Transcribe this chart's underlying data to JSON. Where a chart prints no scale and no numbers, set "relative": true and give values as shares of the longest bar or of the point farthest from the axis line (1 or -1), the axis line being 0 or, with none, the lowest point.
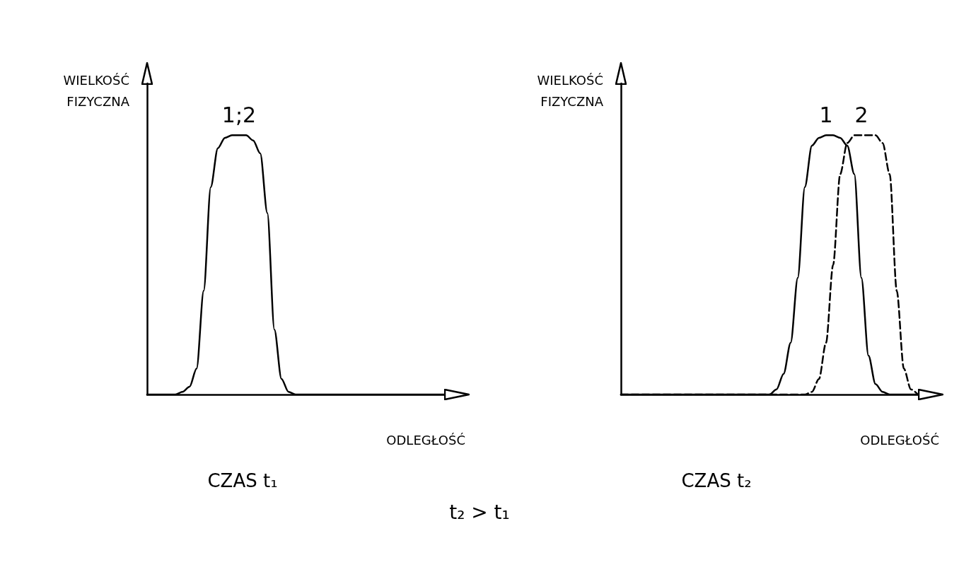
{
  "chart_data": [
    {
      "type": "line",
      "title": "CZAS t₁",
      "xlabel": "ODLEGŁOŚĆ",
      "ylabel": "WIELKOŚĆ FIZYCZNA",
      "relative": true,
      "grid": false,
      "legend": false,
      "marker": "none",
      "annotations": [
        "t₂ > t₁"
      ],
      "categories": [
        null,
        null,
        null,
        null,
        null,
        null,
        null,
        null,
        null,
        null,
        null,
        null,
        null,
        null,
        null,
        null,
        null,
        null,
        null,
        null,
        null,
        null,
        null,
        null,
        null,
        null,
        null,
        null,
        null,
        null,
        null,
        null,
        null,
        null,
        null,
        null,
        null,
        null,
        null,
        null,
        null,
        null,
        null
      ],
      "series": [
        {
          "name": "1;2",
          "color": "#000000",
          "line_style": "solid",
          "values": [
            0,
            0,
            0,
            0,
            0,
            0.01,
            0.03,
            0.1,
            0.4,
            0.8,
            0.95,
            0.99,
            1,
            1,
            1,
            0.98,
            0.93,
            0.7,
            0.25,
            0.06,
            0.01,
            0,
            0,
            0,
            0,
            0,
            0,
            0,
            0,
            0,
            0,
            0,
            0,
            0,
            0,
            0,
            0,
            0,
            0,
            0,
            0,
            0,
            0
          ]
        }
      ]
    },
    {
      "type": "line",
      "title": "CZAS t₂",
      "xlabel": "ODLEGŁOŚĆ",
      "ylabel": "WIELKOŚĆ FIZYCZNA",
      "relative": true,
      "grid": false,
      "legend": false,
      "marker": "none",
      "categories": [
        null,
        null,
        null,
        null,
        null,
        null,
        null,
        null,
        null,
        null,
        null,
        null,
        null,
        null,
        null,
        null,
        null,
        null,
        null,
        null,
        null,
        null,
        null,
        null,
        null,
        null,
        null,
        null,
        null,
        null,
        null,
        null,
        null,
        null,
        null,
        null,
        null,
        null,
        null,
        null,
        null,
        null,
        null
      ],
      "series": [
        {
          "name": "1",
          "color": "#000000",
          "line_style": "solid",
          "values": [
            0,
            0,
            0,
            0,
            0,
            0,
            0,
            0,
            0,
            0,
            0,
            0,
            0,
            0,
            0,
            0,
            0,
            0,
            0,
            0,
            0,
            0,
            0.02,
            0.08,
            0.2,
            0.45,
            0.8,
            0.96,
            0.99,
            1,
            1,
            0.99,
            0.96,
            0.85,
            0.45,
            0.15,
            0.04,
            0.01,
            0,
            0,
            0,
            0,
            0
          ]
        },
        {
          "name": "2",
          "color": "#000000",
          "line_style": "dashed",
          "values": [
            0,
            0,
            0,
            0,
            0,
            0,
            0,
            0,
            0,
            0,
            0,
            0,
            0,
            0,
            0,
            0,
            0,
            0,
            0,
            0,
            0,
            0,
            0,
            0,
            0,
            0,
            0,
            0.01,
            0.06,
            0.2,
            0.5,
            0.85,
            0.97,
            1,
            1,
            1,
            1,
            0.97,
            0.85,
            0.4,
            0.1,
            0.02,
            0
          ]
        }
      ]
    }
  ]
}
